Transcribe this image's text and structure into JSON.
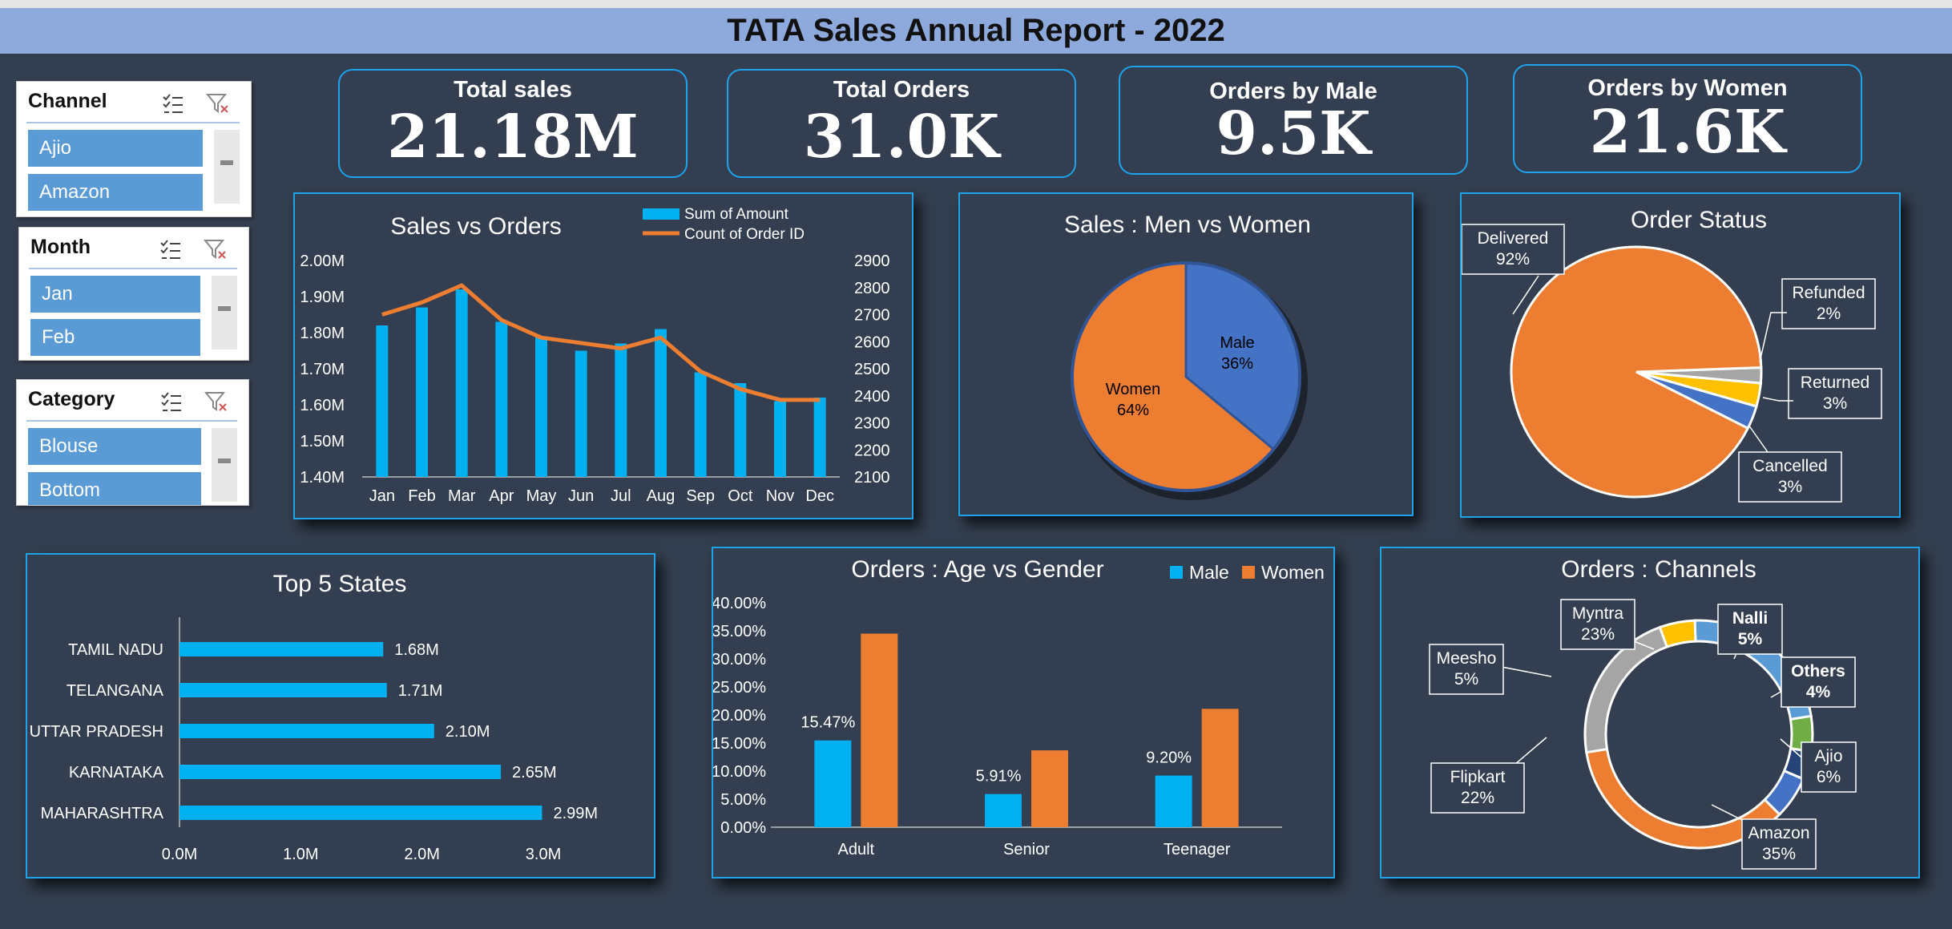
{
  "title": "TATA Sales Annual Report - 2022",
  "kpis": [
    {
      "label": "Total sales",
      "value": "21.18M"
    },
    {
      "label": "Total Orders",
      "value": "31.0K"
    },
    {
      "label": "Orders by Male",
      "value": "9.5K"
    },
    {
      "label": "Orders by Women",
      "value": "21.6K"
    }
  ],
  "slicers": [
    {
      "header": "Channel",
      "items": [
        "Ajio",
        "Amazon"
      ]
    },
    {
      "header": "Month",
      "items": [
        "Jan",
        "Feb"
      ]
    },
    {
      "header": "Category",
      "items": [
        "Blouse",
        "Bottom"
      ]
    }
  ],
  "colors": {
    "background": "#333F50",
    "title_bar": "#8EA9DB",
    "accent": "#1CA3EC",
    "bar": "#00B0F0",
    "orange": "#ED7D31",
    "blue": "#4472C4",
    "gray": "#A5A5A5",
    "gold": "#FFC000",
    "green": "#70AD47",
    "navy": "#264478",
    "light_blue": "#5B9BD5",
    "slicer_item": "#5B9BD5"
  },
  "chart_data": [
    {
      "type": "bar+line",
      "title": "Sales vs Orders",
      "categories": [
        "Jan",
        "Feb",
        "Mar",
        "Apr",
        "May",
        "Jun",
        "Jul",
        "Aug",
        "Sep",
        "Oct",
        "Nov",
        "Dec"
      ],
      "series": [
        {
          "name": "Sum of Amount",
          "type": "bar",
          "axis": "left",
          "values": [
            1.82,
            1.87,
            1.92,
            1.83,
            1.79,
            1.75,
            1.77,
            1.81,
            1.69,
            1.66,
            1.61,
            1.62
          ]
        },
        {
          "name": "Count of Order ID",
          "type": "line",
          "axis": "right",
          "values": [
            2700,
            2745,
            2808,
            2680,
            2615,
            2595,
            2575,
            2615,
            2490,
            2425,
            2385,
            2385
          ]
        }
      ],
      "left_ticks": [
        "1.40M",
        "1.50M",
        "1.60M",
        "1.70M",
        "1.80M",
        "1.90M",
        "2.00M"
      ],
      "right_ticks": [
        "2100",
        "2200",
        "2300",
        "2400",
        "2500",
        "2600",
        "2700",
        "2800",
        "2900"
      ],
      "ylim_left": [
        1.4,
        2.0
      ],
      "ylim_right": [
        2100,
        2900
      ],
      "legend": "top-right"
    },
    {
      "type": "pie",
      "title": "Sales : Men vs Women",
      "slices": [
        {
          "label": "Male",
          "value": 36,
          "text": "36%"
        },
        {
          "label": "Women",
          "value": 64,
          "text": "64%"
        }
      ]
    },
    {
      "type": "pie",
      "title": "Order Status",
      "slices": [
        {
          "label": "Delivered",
          "value": 92,
          "text": "92%"
        },
        {
          "label": "Cancelled",
          "value": 3,
          "text": "3%"
        },
        {
          "label": "Returned",
          "value": 3,
          "text": "3%"
        },
        {
          "label": "Refunded",
          "value": 2,
          "text": "2%"
        }
      ]
    },
    {
      "type": "bar",
      "orientation": "horizontal",
      "title": "Top 5 States",
      "categories": [
        "TAMIL NADU",
        "TELANGANA",
        "UTTAR PRADESH",
        "KARNATAKA",
        "MAHARASHTRA"
      ],
      "values": [
        1.68,
        1.71,
        2.1,
        2.65,
        2.99
      ],
      "labels": [
        "1.68M",
        "1.71M",
        "2.10M",
        "2.65M",
        "2.99M"
      ],
      "x_ticks": [
        "0.0M",
        "1.0M",
        "2.0M",
        "3.0M"
      ],
      "xlim": [
        0,
        3.0
      ]
    },
    {
      "type": "bar",
      "title": "Orders : Age vs Gender",
      "categories": [
        "Adult",
        "Senior",
        "Teenager"
      ],
      "series": [
        {
          "name": "Male",
          "values": [
            15.47,
            5.91,
            9.2
          ],
          "labels": [
            "15.47%",
            "5.91%",
            "9.20%"
          ]
        },
        {
          "name": "Women",
          "values": [
            34.5,
            13.7,
            21.1
          ]
        }
      ],
      "y_ticks": [
        "0.00%",
        "5.00%",
        "10.00%",
        "15.00%",
        "20.00%",
        "25.00%",
        "30.00%",
        "35.00%",
        "40.00%"
      ],
      "ylim": [
        0,
        40
      ],
      "legend": "top-right"
    },
    {
      "type": "donut",
      "title": "Orders : Channels",
      "slices": [
        {
          "label": "Myntra",
          "value": 23,
          "text": "23%"
        },
        {
          "label": "Nalli",
          "value": 5,
          "text": "5%"
        },
        {
          "label": "Others",
          "value": 4,
          "text": "4%"
        },
        {
          "label": "Ajio",
          "value": 6,
          "text": "6%"
        },
        {
          "label": "Amazon",
          "value": 35,
          "text": "35%"
        },
        {
          "label": "Flipkart",
          "value": 22,
          "text": "22%"
        },
        {
          "label": "Meesho",
          "value": 5,
          "text": "5%"
        }
      ]
    }
  ]
}
